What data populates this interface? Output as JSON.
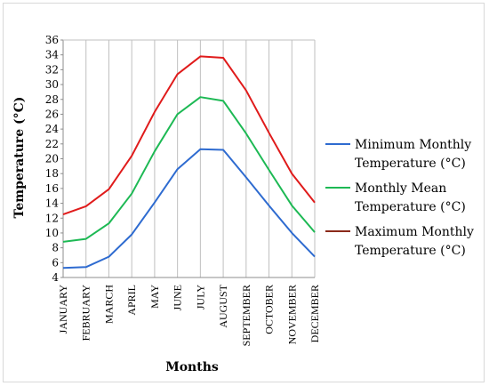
{
  "chart_data": {
    "type": "line",
    "title": "",
    "xlabel": "Months",
    "ylabel": "Temperature (°C)",
    "categories": [
      "JANUARY",
      "FEBRUARY",
      "MARCH",
      "APRIL",
      "MAY",
      "JUNE",
      "JULY",
      "AUGUST",
      "SEPTEMBER",
      "OCTOBER",
      "NOVEMBER",
      "DECEMBER"
    ],
    "ylim": [
      4,
      36
    ],
    "yticks": [
      4,
      6,
      8,
      10,
      12,
      14,
      16,
      18,
      20,
      22,
      24,
      26,
      28,
      30,
      32,
      34,
      36
    ],
    "grid": "vertical",
    "legend_position": "right",
    "series": [
      {
        "name": "Minimum Monthly Temperature (°C)",
        "legend_lines": [
          "Minimum Monthly",
          "Temperature (°C)"
        ],
        "color": "#2e6bd0",
        "values": [
          5.3,
          5.4,
          6.8,
          9.8,
          14.1,
          18.6,
          21.3,
          21.2,
          17.5,
          13.7,
          10.0,
          6.8
        ]
      },
      {
        "name": "Monthly Mean Temperature (°C)",
        "legend_lines": [
          "Monthly Mean",
          "Temperature (°C)"
        ],
        "color": "#1db954",
        "values": [
          8.8,
          9.2,
          11.3,
          15.3,
          21.0,
          26.0,
          28.3,
          27.8,
          23.4,
          18.5,
          13.7,
          10.1
        ]
      },
      {
        "name": "Maximum Monthly Temperature (°C)",
        "legend_lines": [
          "Maximum Monthly",
          "Temperature (°C)"
        ],
        "color": "#e01b1b",
        "legend_color": "#8b2a1a",
        "values": [
          12.5,
          13.6,
          15.9,
          20.4,
          26.3,
          31.4,
          33.8,
          33.6,
          29.2,
          23.5,
          18.0,
          14.1
        ]
      }
    ]
  }
}
